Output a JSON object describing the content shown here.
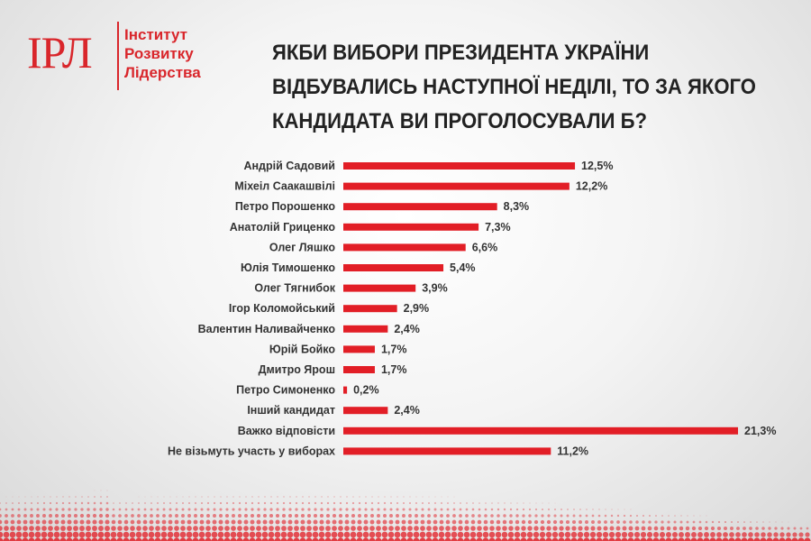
{
  "logo": {
    "mark": "ІРЛ",
    "line1": "Інститут",
    "line2": "Розвитку",
    "line3": "Лідерства"
  },
  "title_lines": [
    "ЯКБИ ВИБОРИ ПРЕЗИДЕНТА УКРАЇНИ",
    "ВІДБУВАЛИСЬ НАСТУПНОЇ НЕДІЛІ, ТО ЗА ЯКОГО",
    "КАНДИДАТА ВИ ПРОГОЛОСУВАЛИ Б?"
  ],
  "colors": {
    "accent": "#e21e26",
    "text": "#333333"
  },
  "chart_data": {
    "type": "bar",
    "orientation": "horizontal",
    "title": "ЯКБИ ВИБОРИ ПРЕЗИДЕНТА УКРАЇНИ ВІДБУВАЛИСЬ НАСТУПНОЇ НЕДІЛІ, ТО ЗА ЯКОГО КАНДИДАТА ВИ ПРОГОЛОСУВАЛИ Б?",
    "xlabel": "",
    "ylabel": "",
    "categories": [
      "Андрій Садовий",
      "Міхеіл Саакашвілі",
      "Петро Порошенко",
      "Анатолій Гриценко",
      "Олег Ляшко",
      "Юлія Тимошенко",
      "Олег Тягнибок",
      "Ігор Коломойський",
      "Валентин Наливайченко",
      "Юрій Бойко",
      "Дмитро Ярош",
      "Петро Симоненко",
      "Інший кандидат",
      "Важко відповісти",
      "Не візьмуть участь у виборах"
    ],
    "values": [
      12.5,
      12.2,
      8.3,
      7.3,
      6.6,
      5.4,
      3.9,
      2.9,
      2.4,
      1.7,
      1.7,
      0.2,
      2.4,
      21.3,
      11.2
    ],
    "value_labels": [
      "12,5%",
      "12,2%",
      "8,3%",
      "7,3%",
      "6,6%",
      "5,4%",
      "3,9%",
      "2,9%",
      "2,4%",
      "1,7%",
      "1,7%",
      "0,2%",
      "2,4%",
      "21,3%",
      "11,2%"
    ],
    "xlim": [
      0,
      21.3
    ],
    "grid": false,
    "legend": "none"
  }
}
